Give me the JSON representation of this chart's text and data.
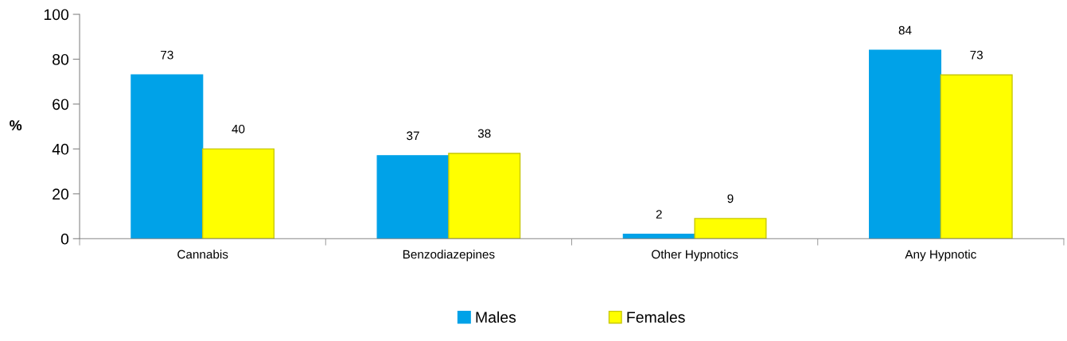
{
  "chart_data": {
    "type": "bar",
    "ylabel": "%",
    "categories": [
      "Cannabis",
      "Benzodiazepines",
      "Other Hypnotics",
      "Any Hypnotic"
    ],
    "series": [
      {
        "name": "Males",
        "color": "#00a2e8",
        "values": [
          73,
          37,
          2,
          84
        ]
      },
      {
        "name": "Females",
        "color": "#ffff00",
        "values": [
          40,
          38,
          9,
          73
        ]
      }
    ],
    "ylim": [
      0,
      100
    ],
    "yticks": [
      0,
      20,
      40,
      60,
      80,
      100
    ],
    "data_labels": true,
    "grid": false,
    "legend": "bottom"
  }
}
